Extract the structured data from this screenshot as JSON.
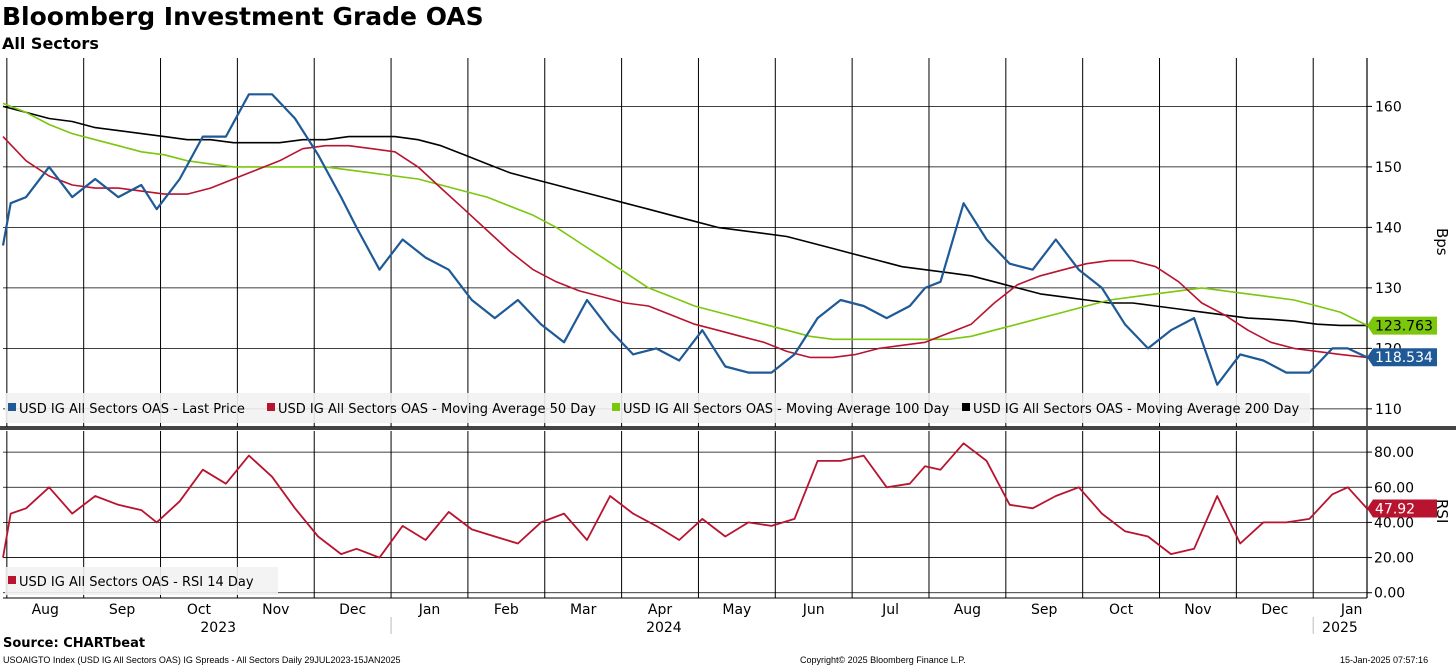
{
  "title": "Bloomberg Investment Grade OAS",
  "subtitle": "All Sectors",
  "source": "Source: CHARTbeat",
  "footer": {
    "left": "USOAIGTO Index (USD IG All Sectors OAS) IG Spreads - All Sectors  Daily 29JUL2023-15JAN2025",
    "center": "Copyright© 2025 Bloomberg Finance L.P.",
    "right": "15-Jan-2025 07:57:16"
  },
  "colors": {
    "last_price": "#1f5a96",
    "ma50": "#b8142f",
    "ma100": "#7ac70c",
    "ma200": "#000000",
    "rsi": "#b8142f"
  },
  "chart_data": [
    {
      "type": "line",
      "panel": "upper",
      "ylabel": "Bps",
      "ylim": [
        107,
        168
      ],
      "yticks": [
        "110",
        "120",
        "130",
        "140",
        "150",
        "160"
      ],
      "grid": true,
      "legend_placement": "bottom-left",
      "x_tick_labels": [
        "Aug",
        "Sep",
        "Oct",
        "Nov",
        "Dec",
        "Jan",
        "Feb",
        "Mar",
        "Apr",
        "May",
        "Jun",
        "Jul",
        "Aug",
        "Sep",
        "Oct",
        "Nov",
        "Dec",
        "Jan"
      ],
      "year_labels": [
        "2023",
        "2024",
        "2025"
      ],
      "value_labels": [
        "123.763",
        "118.534"
      ],
      "series": [
        {
          "name": "USD IG All Sectors OAS - Last Price",
          "t": [
            0,
            0.1,
            0.3,
            0.6,
            0.9,
            1.2,
            1.5,
            1.8,
            2.0,
            2.3,
            2.6,
            2.9,
            3.2,
            3.5,
            3.8,
            4.1,
            4.4,
            4.6,
            4.9,
            5.2,
            5.5,
            5.8,
            6.1,
            6.4,
            6.7,
            7.0,
            7.3,
            7.6,
            7.9,
            8.2,
            8.5,
            8.8,
            9.1,
            9.4,
            9.7,
            10.0,
            10.3,
            10.6,
            10.9,
            11.2,
            11.5,
            11.8,
            12.0,
            12.2,
            12.5,
            12.8,
            13.1,
            13.4,
            13.7,
            14.0,
            14.3,
            14.6,
            14.9,
            15.2,
            15.5,
            15.8,
            16.1,
            16.4,
            16.7,
            17.0,
            17.3,
            17.5,
            17.75
          ],
          "values": [
            137,
            144,
            145,
            150,
            145,
            148,
            145,
            147,
            143,
            148,
            155,
            155,
            162,
            162,
            158,
            152,
            145,
            140,
            133,
            138,
            135,
            133,
            128,
            125,
            128,
            124,
            121,
            128,
            123,
            119,
            120,
            118,
            123,
            117,
            116,
            116,
            119,
            125,
            128,
            127,
            125,
            127,
            130,
            131,
            144,
            138,
            134,
            133,
            138,
            133,
            130,
            124,
            120,
            123,
            125,
            114,
            119,
            118,
            116,
            116,
            120,
            120,
            118.534
          ]
        },
        {
          "name": "USD IG All Sectors OAS - Moving Average 50 Day",
          "t": [
            0,
            0.3,
            0.6,
            0.9,
            1.2,
            1.5,
            1.8,
            2.1,
            2.4,
            2.7,
            3.0,
            3.3,
            3.6,
            3.9,
            4.2,
            4.5,
            4.8,
            5.1,
            5.4,
            5.7,
            6.0,
            6.3,
            6.6,
            6.9,
            7.2,
            7.5,
            7.8,
            8.1,
            8.4,
            8.7,
            9.0,
            9.3,
            9.6,
            9.9,
            10.2,
            10.5,
            10.8,
            11.1,
            11.4,
            11.7,
            12.0,
            12.3,
            12.6,
            12.9,
            13.2,
            13.5,
            13.8,
            14.1,
            14.4,
            14.7,
            15.0,
            15.3,
            15.6,
            15.9,
            16.2,
            16.5,
            16.8,
            17.1,
            17.4,
            17.75
          ],
          "values": [
            155,
            151,
            148.5,
            147,
            146.5,
            146.5,
            146,
            145.5,
            145.5,
            146.5,
            148,
            149.5,
            151,
            153,
            153.5,
            153.5,
            153,
            152.5,
            150,
            146.5,
            143,
            139.5,
            136,
            133,
            131,
            129.5,
            128.5,
            127.5,
            127,
            125.5,
            124,
            123,
            122,
            121,
            119.5,
            118.5,
            118.5,
            119,
            120,
            120.5,
            121,
            122.5,
            124,
            127.5,
            130.5,
            132,
            133,
            134,
            134.5,
            134.5,
            133.5,
            131,
            127.5,
            125.5,
            123,
            121,
            120,
            119.5,
            119,
            118.5
          ]
        },
        {
          "name": "USD IG All Sectors OAS - Moving Average 100 Day",
          "t": [
            0,
            0.3,
            0.6,
            0.9,
            1.2,
            1.5,
            1.8,
            2.1,
            2.4,
            2.7,
            3.0,
            3.3,
            3.6,
            3.9,
            4.2,
            4.5,
            4.8,
            5.1,
            5.4,
            5.7,
            6.0,
            6.3,
            6.6,
            6.9,
            7.2,
            7.5,
            7.8,
            8.1,
            8.4,
            8.7,
            9.0,
            9.3,
            9.6,
            9.9,
            10.2,
            10.5,
            10.8,
            11.1,
            11.4,
            11.7,
            12.0,
            12.3,
            12.6,
            12.9,
            13.2,
            13.5,
            13.8,
            14.1,
            14.4,
            14.7,
            15.0,
            15.3,
            15.6,
            15.9,
            16.2,
            16.5,
            16.8,
            17.1,
            17.4,
            17.75
          ],
          "values": [
            160.5,
            159,
            157,
            155.5,
            154.5,
            153.5,
            152.5,
            152,
            151,
            150.5,
            150,
            150,
            150,
            150,
            150,
            149.5,
            149,
            148.5,
            148,
            147,
            146,
            145,
            143.5,
            142,
            140,
            137.5,
            135,
            132.5,
            130,
            128.5,
            127,
            126,
            125,
            124,
            123,
            122,
            121.5,
            121.5,
            121.5,
            121.5,
            121.5,
            121.5,
            122,
            123,
            124,
            125,
            126,
            127,
            128,
            128.5,
            129,
            129.5,
            130,
            129.5,
            129,
            128.5,
            128,
            127,
            126,
            123.8
          ]
        },
        {
          "name": "USD IG All Sectors OAS - Moving Average 200 Day",
          "t": [
            0,
            0.3,
            0.6,
            0.9,
            1.2,
            1.5,
            1.8,
            2.1,
            2.4,
            2.7,
            3.0,
            3.3,
            3.6,
            3.9,
            4.2,
            4.5,
            4.8,
            5.1,
            5.4,
            5.7,
            6.0,
            6.3,
            6.6,
            6.9,
            7.2,
            7.5,
            7.8,
            8.1,
            8.4,
            8.7,
            9.0,
            9.3,
            9.6,
            9.9,
            10.2,
            10.5,
            10.8,
            11.1,
            11.4,
            11.7,
            12.0,
            12.3,
            12.6,
            12.9,
            13.2,
            13.5,
            13.8,
            14.1,
            14.4,
            14.7,
            15.0,
            15.3,
            15.6,
            15.9,
            16.2,
            16.5,
            16.8,
            17.1,
            17.4,
            17.75
          ],
          "values": [
            160,
            159,
            158,
            157.5,
            156.5,
            156,
            155.5,
            155,
            154.5,
            154.5,
            154,
            154,
            154,
            154.5,
            154.5,
            155,
            155,
            155,
            154.5,
            153.5,
            152,
            150.5,
            149,
            148,
            147,
            146,
            145,
            144,
            143,
            142,
            141,
            140,
            139.5,
            139,
            138.5,
            137.5,
            136.5,
            135.5,
            134.5,
            133.5,
            133,
            132.5,
            132,
            131,
            130,
            129,
            128.5,
            128,
            127.5,
            127.5,
            127,
            126.5,
            126,
            125.5,
            125,
            124.8,
            124.5,
            124,
            123.8,
            123.8
          ]
        }
      ]
    },
    {
      "type": "line",
      "panel": "lower",
      "ylabel": "RSI",
      "ylim": [
        -3,
        92
      ],
      "yticks": [
        "0.00",
        "20.00",
        "40.00",
        "60.00",
        "80.00"
      ],
      "grid": true,
      "legend_placement": "bottom-left",
      "value_labels": [
        "47.92"
      ],
      "series": [
        {
          "name": "USD IG All Sectors OAS - RSI 14 Day",
          "t": [
            0,
            0.1,
            0.3,
            0.6,
            0.9,
            1.2,
            1.5,
            1.8,
            2.0,
            2.3,
            2.6,
            2.9,
            3.2,
            3.5,
            3.8,
            4.1,
            4.4,
            4.6,
            4.9,
            5.2,
            5.5,
            5.8,
            6.1,
            6.4,
            6.7,
            7.0,
            7.3,
            7.6,
            7.9,
            8.2,
            8.5,
            8.8,
            9.1,
            9.4,
            9.7,
            10.0,
            10.3,
            10.6,
            10.9,
            11.2,
            11.5,
            11.8,
            12.0,
            12.2,
            12.5,
            12.8,
            13.1,
            13.4,
            13.7,
            14.0,
            14.3,
            14.6,
            14.9,
            15.2,
            15.5,
            15.8,
            16.1,
            16.4,
            16.7,
            17.0,
            17.3,
            17.5,
            17.75
          ],
          "values": [
            20,
            45,
            48,
            60,
            45,
            55,
            50,
            47,
            40,
            52,
            70,
            62,
            78,
            66,
            48,
            32,
            22,
            25,
            20,
            38,
            30,
            46,
            36,
            32,
            28,
            40,
            45,
            30,
            55,
            45,
            38,
            30,
            42,
            32,
            40,
            38,
            42,
            75,
            75,
            78,
            60,
            62,
            72,
            70,
            85,
            75,
            50,
            48,
            55,
            60,
            45,
            35,
            32,
            22,
            25,
            55,
            28,
            40,
            40,
            42,
            56,
            60,
            47.92
          ]
        }
      ]
    }
  ]
}
